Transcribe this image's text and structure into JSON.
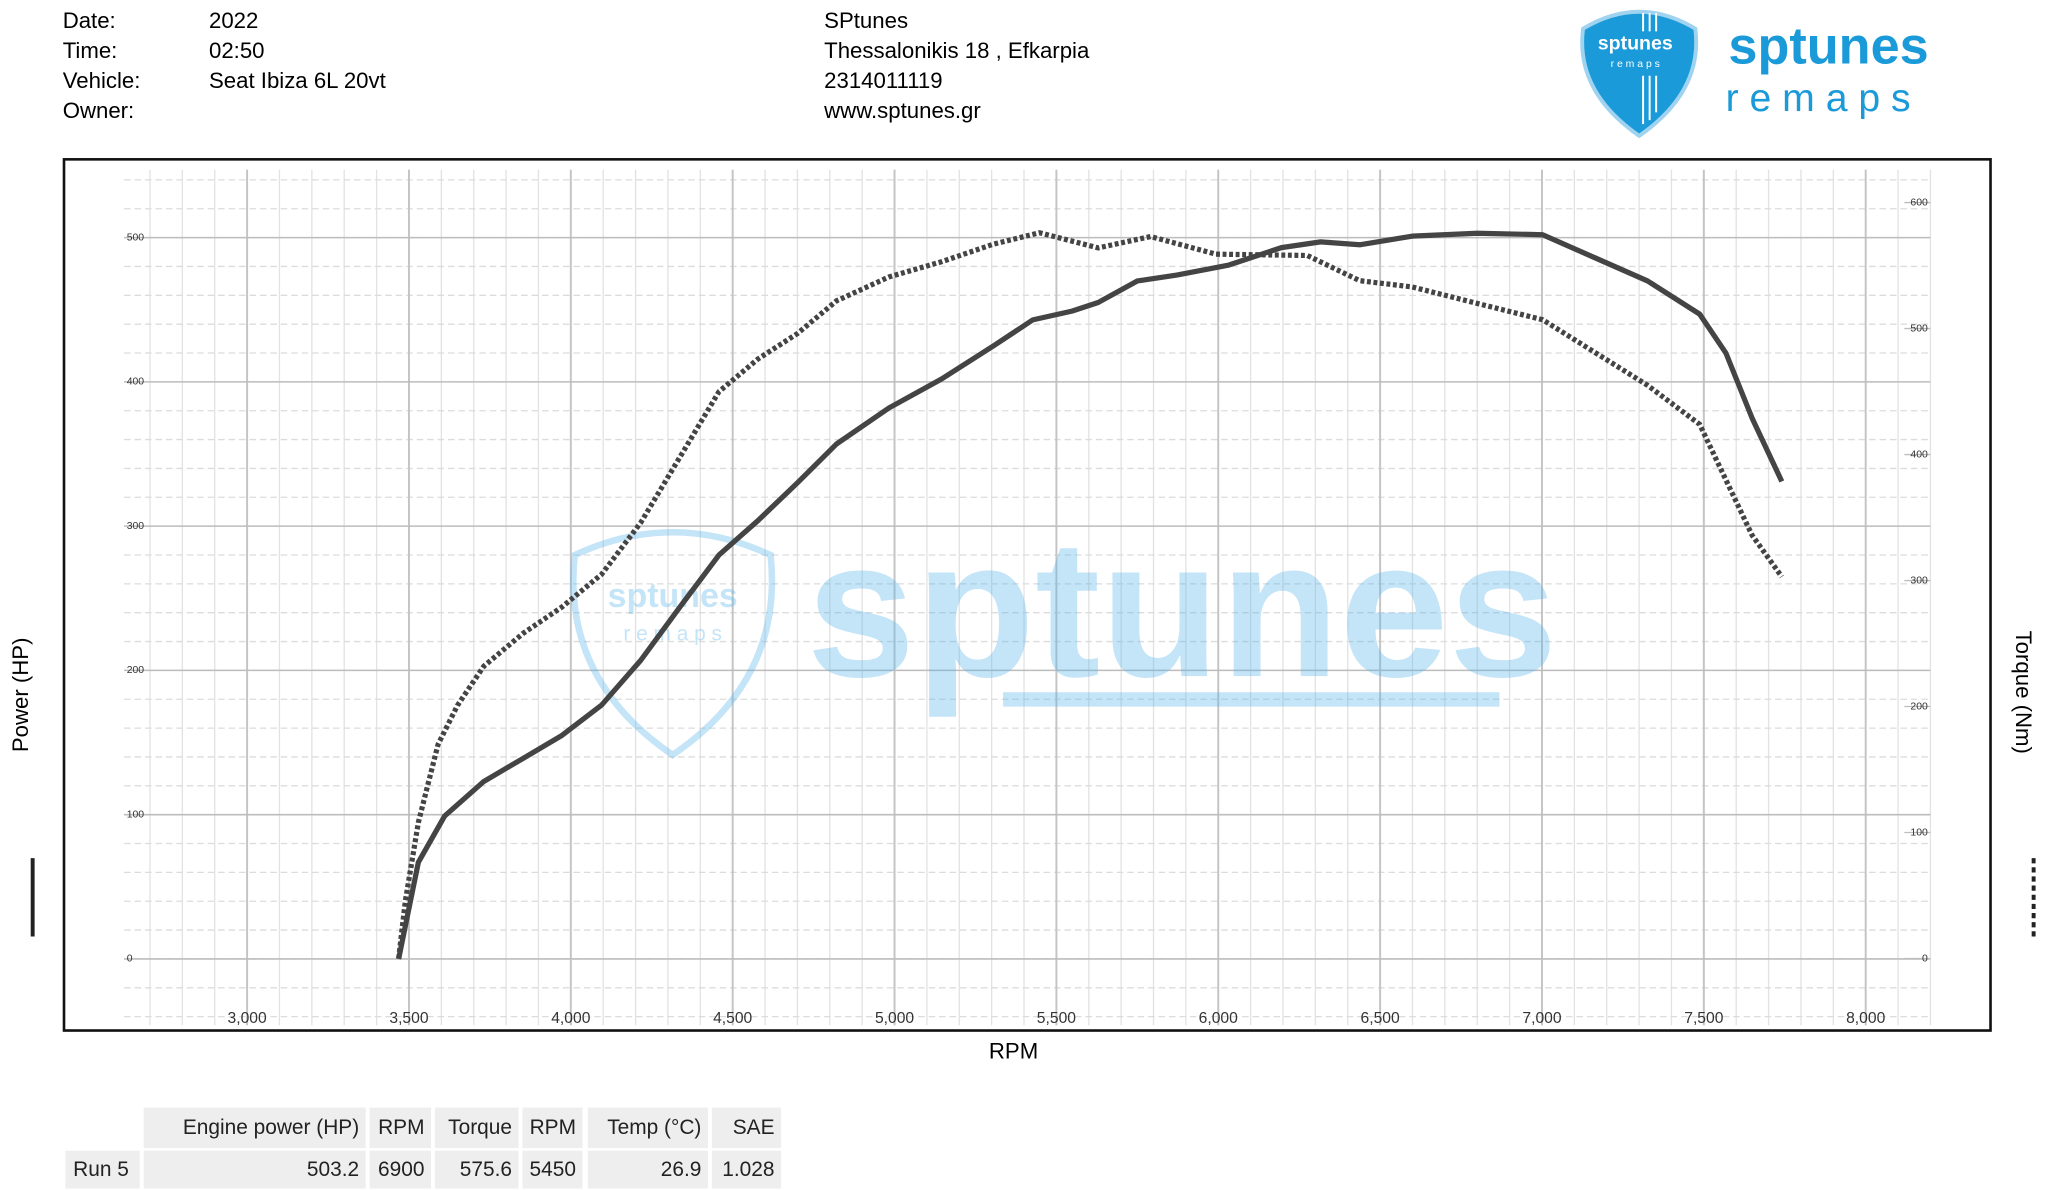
{
  "header": {
    "fields": [
      {
        "label": "Date:",
        "value": "2022"
      },
      {
        "label": "Time:",
        "value": "02:50"
      },
      {
        "label": "Vehicle:",
        "value": "Seat Ibiza 6L 20vt"
      },
      {
        "label": "Owner:"
      }
    ],
    "company": [
      "SPtunes",
      "Thessalonikis 18 , Efkarpia",
      "2314011119",
      "www.sptunes.gr"
    ]
  },
  "logo": {
    "name": "sptunes",
    "tagline": "r e m a p s"
  },
  "chart_data": {
    "type": "line",
    "xlabel": "RPM",
    "ylabel": "Power (HP)",
    "y2label": "Torque (Nm)",
    "xlim": [
      2620,
      8200
    ],
    "ylim": [
      -46,
      547
    ],
    "y2lim": [
      -53,
      626
    ],
    "xticks": [
      {
        "value": 3000,
        "label": "3,000"
      },
      {
        "value": 3500,
        "label": "3,500"
      },
      {
        "value": 4000,
        "label": "4,000"
      },
      {
        "value": 4500,
        "label": "4,500"
      },
      {
        "value": 5000,
        "label": "5,000"
      },
      {
        "value": 5500,
        "label": "5,500"
      },
      {
        "value": 6000,
        "label": "6,000"
      },
      {
        "value": 6500,
        "label": "6,500"
      },
      {
        "value": 7000,
        "label": "7,000"
      },
      {
        "value": 7500,
        "label": "7,500"
      },
      {
        "value": 8000,
        "label": "8,000"
      }
    ],
    "yticks": [
      0,
      100,
      200,
      300,
      400,
      500
    ],
    "y2ticks": [
      0,
      100,
      200,
      300,
      400,
      500,
      600
    ],
    "grid": true,
    "series": [
      {
        "color": "#444444",
        "style": "solid",
        "x": [
          3468,
          3529,
          3610,
          3731,
          3852,
          3973,
          4095,
          4216,
          4337,
          4458,
          4579,
          4700,
          4821,
          4983,
          5145,
          5306,
          5427,
          5548,
          5629,
          5750,
          5872,
          6033,
          6195,
          6316,
          6437,
          6599,
          6800,
          7002,
          7164,
          7326,
          7487,
          7568,
          7649,
          7741
        ],
        "values": [
          0,
          67,
          99,
          123,
          139,
          155,
          176,
          207,
          244,
          280,
          304,
          330,
          357,
          382,
          402,
          425,
          443,
          449,
          455,
          470,
          474,
          481,
          493,
          497,
          495,
          501,
          503,
          502,
          486,
          470,
          447,
          420,
          375,
          331
        ]
      },
      {
        "color": "#444444",
        "style": "dotted",
        "axis": "y2",
        "x": [
          3468,
          3489,
          3529,
          3590,
          3650,
          3731,
          3852,
          3973,
          4095,
          4216,
          4337,
          4458,
          4579,
          4700,
          4821,
          4983,
          5145,
          5306,
          5448,
          5629,
          5791,
          5993,
          6275,
          6437,
          6599,
          6800,
          7002,
          7164,
          7326,
          7487,
          7649,
          7741
        ],
        "values": [
          0,
          46,
          108,
          170,
          201,
          232,
          258,
          279,
          305,
          346,
          398,
          450,
          476,
          496,
          522,
          541,
          553,
          567,
          576,
          564,
          573,
          559,
          558,
          538,
          533,
          520,
          507,
          481,
          455,
          424,
          336,
          303
        ]
      }
    ]
  },
  "table": {
    "columns": [
      "Engine power (HP)",
      "RPM",
      "Torque",
      "RPM",
      "Temp (°C)",
      "SAE"
    ],
    "rows": [
      {
        "label": "Run 5",
        "cells": [
          503.2,
          6900,
          575.6,
          5450,
          26.9,
          1.028
        ]
      }
    ]
  }
}
